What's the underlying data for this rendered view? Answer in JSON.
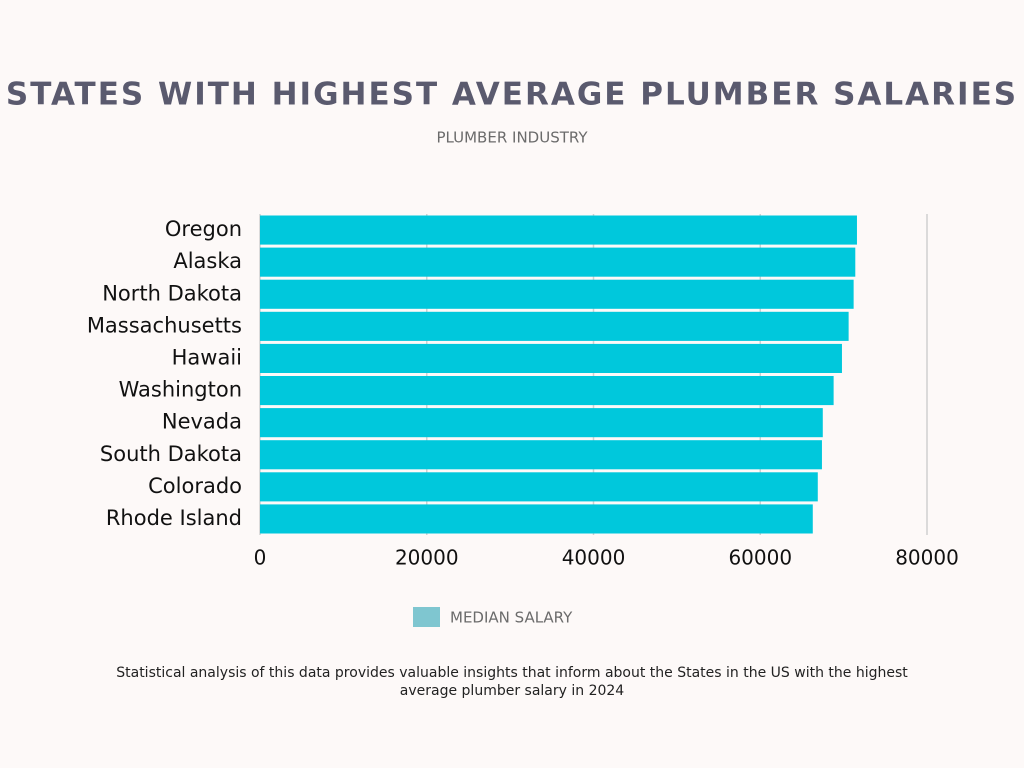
{
  "chart_data": {
    "type": "barh",
    "title": "STATES WITH HIGHEST AVERAGE PLUMBER SALARIES",
    "subtitle": "PLUMBER INDUSTRY",
    "categories": [
      "Oregon",
      "Alaska",
      "North Dakota",
      "Massachusetts",
      "Hawaii",
      "Washington",
      "Nevada",
      "South Dakota",
      "Colorado",
      "Rhode Island"
    ],
    "series": [
      {
        "name": "MEDIAN SALARY",
        "color": "#00c8dc",
        "values": [
          71600,
          71400,
          71200,
          70600,
          69800,
          68800,
          67500,
          67400,
          66900,
          66300
        ]
      }
    ],
    "legend_color": "#7fc6d0",
    "xlim": [
      0,
      80000
    ],
    "xticks": [
      0,
      20000,
      40000,
      60000,
      80000
    ],
    "grid": true,
    "note": "Statistical analysis of this data provides valuable insights that inform about the States in the US with the highest average plumber salary in 2024"
  }
}
